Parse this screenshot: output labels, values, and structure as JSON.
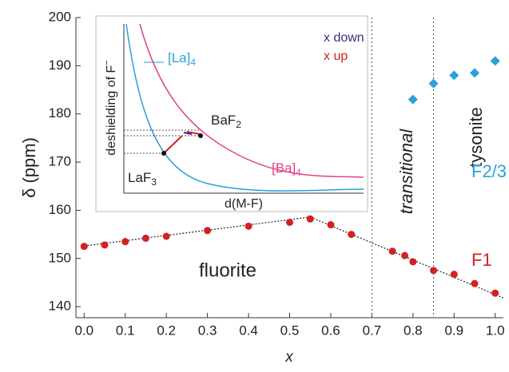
{
  "chart_data": {
    "type": "scatter",
    "y_label": "δ (ppm)",
    "x_label": "x",
    "xlim": [
      -0.02,
      1.02
    ],
    "ylim": [
      137.7,
      200
    ],
    "xticks": [
      {
        "value": 0,
        "label": "0.0"
      },
      0.1,
      0.2,
      0.3,
      0.4,
      0.5,
      0.6,
      0.7,
      0.8,
      0.9,
      {
        "value": 1,
        "label": "1.0"
      }
    ],
    "yticks": [
      140,
      150,
      160,
      170,
      180,
      190,
      200
    ],
    "series": [
      {
        "name": "F1",
        "color": "#d42020",
        "marker": "circle",
        "x": [
          0.0,
          0.05,
          0.1,
          0.15,
          0.2,
          0.3,
          0.4,
          0.5,
          0.55,
          0.6,
          0.65,
          0.75,
          0.78,
          0.8,
          0.85,
          0.9,
          0.95,
          1.0
        ],
        "values": [
          152.5,
          152.8,
          153.5,
          154.2,
          154.6,
          155.8,
          156.7,
          157.5,
          158.2,
          157.0,
          155.0,
          151.5,
          150.6,
          149.3,
          147.5,
          146.7,
          144.8,
          142.8
        ]
      },
      {
        "name": "F2/3",
        "color": "#2aa0dc",
        "marker": "diamond",
        "x": [
          0.8,
          0.85,
          0.9,
          0.95,
          1.0
        ],
        "values": [
          183.0,
          186.3,
          188.0,
          188.5,
          191.0
        ]
      }
    ],
    "trend_lines": [
      {
        "x": [
          0,
          0.55
        ],
        "values": [
          152.6,
          158.6
        ]
      },
      {
        "x": [
          0.55,
          1.02
        ],
        "values": [
          158.6,
          141.8
        ]
      }
    ],
    "dividers": [
      0.7,
      0.85
    ],
    "regions": [
      "fluorite",
      "transitional",
      "tysonite"
    ],
    "inset": {
      "y_label": {
        "text": "deshielding of F",
        "sup": "−"
      },
      "x_label": "d(M-F)",
      "x_down": "x down",
      "x_up": "x up",
      "la4": {
        "text": "[La]",
        "sub": "4"
      },
      "ba4": {
        "text": "[Ba]",
        "sub": "4"
      },
      "baf2": {
        "text": "BaF",
        "sub": "2"
      },
      "laf3": {
        "text": "LaF",
        "sub": "3"
      }
    }
  }
}
